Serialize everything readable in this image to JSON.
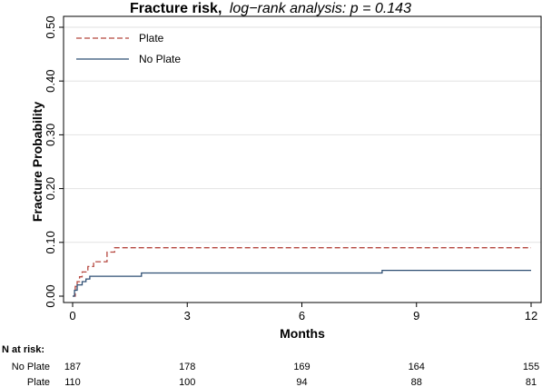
{
  "chart_data": {
    "type": "line",
    "title": "Fracture risk,",
    "subtitle": "log−rank analysis: p = 0.143",
    "xlabel": "Months",
    "ylabel": "Fracture Probability",
    "xlim": [
      0,
      12
    ],
    "ylim": [
      0,
      0.5
    ],
    "xticks": [
      "0",
      "3",
      "6",
      "9",
      "12"
    ],
    "yticks": [
      "0.00",
      "0.10",
      "0.20",
      "0.30",
      "0.40",
      "0.50"
    ],
    "grid": true,
    "legend_position": "top-left",
    "series": [
      {
        "name": "Plate",
        "color": "#b5473f",
        "dash": true,
        "x": [
          0,
          0.07,
          0.07,
          0.12,
          0.12,
          0.18,
          0.18,
          0.25,
          0.25,
          0.4,
          0.4,
          0.55,
          0.55,
          0.9,
          0.9,
          1.1,
          1.1,
          12
        ],
        "y": [
          0,
          0,
          0.018,
          0.018,
          0.027,
          0.027,
          0.036,
          0.036,
          0.045,
          0.045,
          0.055,
          0.055,
          0.064,
          0.064,
          0.082,
          0.082,
          0.09,
          0.09
        ]
      },
      {
        "name": "No Plate",
        "color": "#2f4f73",
        "dash": false,
        "x": [
          0,
          0.05,
          0.05,
          0.12,
          0.12,
          0.25,
          0.25,
          0.35,
          0.35,
          0.45,
          0.45,
          1.8,
          1.8,
          8.1,
          8.1,
          12
        ],
        "y": [
          0,
          0,
          0.011,
          0.011,
          0.021,
          0.021,
          0.027,
          0.027,
          0.032,
          0.032,
          0.037,
          0.037,
          0.043,
          0.043,
          0.048,
          0.048
        ]
      }
    ],
    "risk_table": {
      "title": "N at risk:",
      "times": [
        0,
        3,
        6,
        9,
        12
      ],
      "rows": [
        {
          "label": "No Plate",
          "values": [
            "187",
            "178",
            "169",
            "164",
            "155"
          ]
        },
        {
          "label": "Plate",
          "values": [
            "110",
            "100",
            "94",
            "88",
            "81"
          ]
        }
      ]
    }
  }
}
